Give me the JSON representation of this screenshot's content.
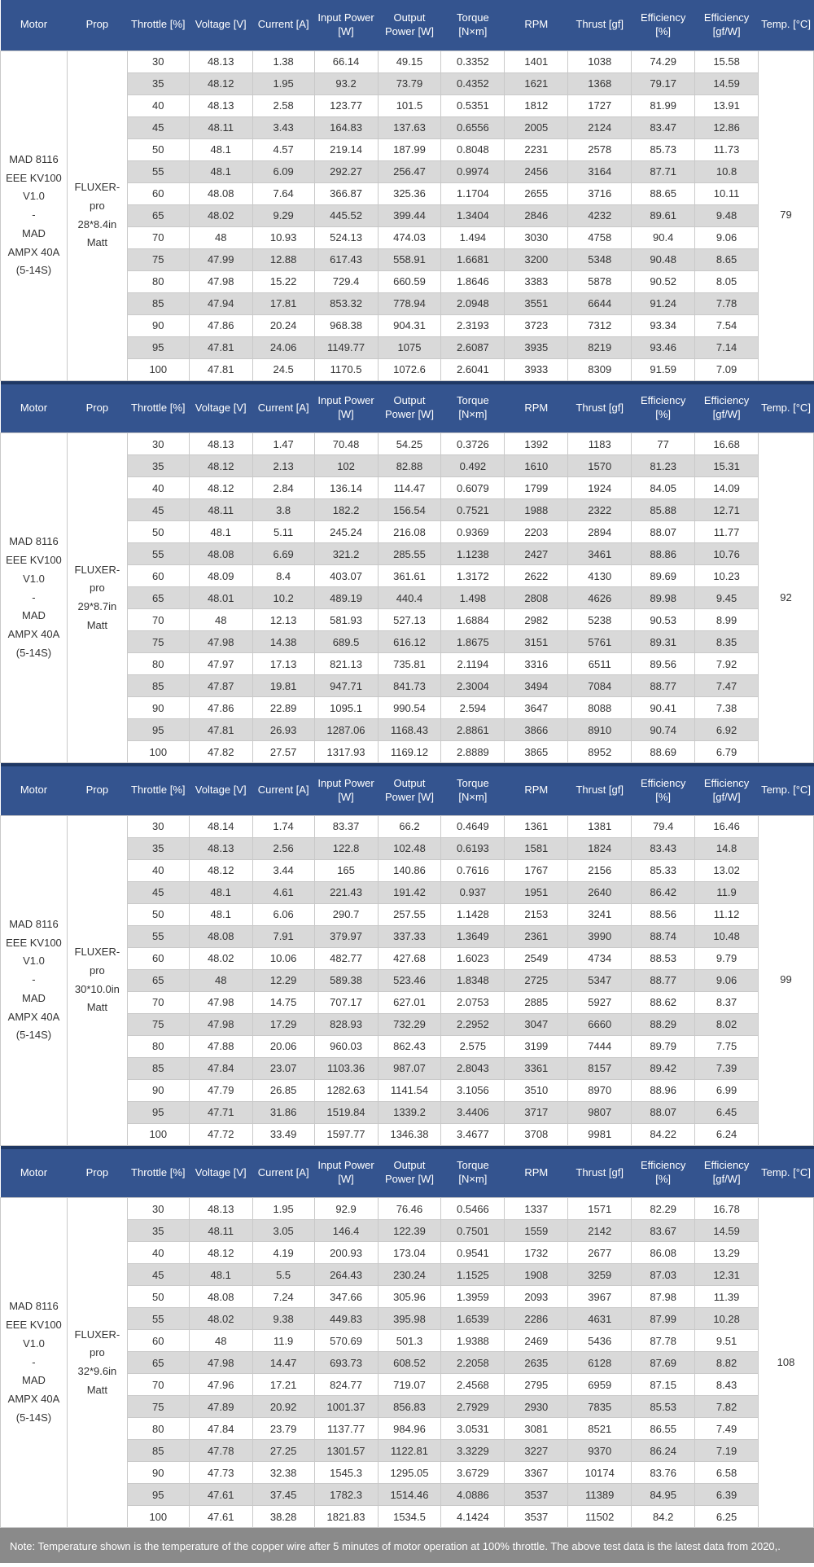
{
  "table": {
    "columns": [
      "Motor",
      "Prop",
      "Throttle [%]",
      "Voltage [V]",
      "Current [A]",
      "Input Power [W]",
      "Output Power [W]",
      "Torque [N×m]",
      "RPM",
      "Thrust [gf]",
      "Efficiency [%]",
      "Efficiency [gf/W]",
      "Temp. [°C]"
    ],
    "sections": [
      {
        "motor": "MAD 8116\nEEE KV100\nV1.0\n-\nMAD\nAMPX 40A\n(5-14S)",
        "prop": "FLUXER-\npro\n28*8.4in\nMatt",
        "temp": "79",
        "rows": [
          [
            "30",
            "48.13",
            "1.38",
            "66.14",
            "49.15",
            "0.3352",
            "1401",
            "1038",
            "74.29",
            "15.58"
          ],
          [
            "35",
            "48.12",
            "1.95",
            "93.2",
            "73.79",
            "0.4352",
            "1621",
            "1368",
            "79.17",
            "14.59"
          ],
          [
            "40",
            "48.13",
            "2.58",
            "123.77",
            "101.5",
            "0.5351",
            "1812",
            "1727",
            "81.99",
            "13.91"
          ],
          [
            "45",
            "48.11",
            "3.43",
            "164.83",
            "137.63",
            "0.6556",
            "2005",
            "2124",
            "83.47",
            "12.86"
          ],
          [
            "50",
            "48.1",
            "4.57",
            "219.14",
            "187.99",
            "0.8048",
            "2231",
            "2578",
            "85.73",
            "11.73"
          ],
          [
            "55",
            "48.1",
            "6.09",
            "292.27",
            "256.47",
            "0.9974",
            "2456",
            "3164",
            "87.71",
            "10.8"
          ],
          [
            "60",
            "48.08",
            "7.64",
            "366.87",
            "325.36",
            "1.1704",
            "2655",
            "3716",
            "88.65",
            "10.11"
          ],
          [
            "65",
            "48.02",
            "9.29",
            "445.52",
            "399.44",
            "1.3404",
            "2846",
            "4232",
            "89.61",
            "9.48"
          ],
          [
            "70",
            "48",
            "10.93",
            "524.13",
            "474.03",
            "1.494",
            "3030",
            "4758",
            "90.4",
            "9.06"
          ],
          [
            "75",
            "47.99",
            "12.88",
            "617.43",
            "558.91",
            "1.6681",
            "3200",
            "5348",
            "90.48",
            "8.65"
          ],
          [
            "80",
            "47.98",
            "15.22",
            "729.4",
            "660.59",
            "1.8646",
            "3383",
            "5878",
            "90.52",
            "8.05"
          ],
          [
            "85",
            "47.94",
            "17.81",
            "853.32",
            "778.94",
            "2.0948",
            "3551",
            "6644",
            "91.24",
            "7.78"
          ],
          [
            "90",
            "47.86",
            "20.24",
            "968.38",
            "904.31",
            "2.3193",
            "3723",
            "7312",
            "93.34",
            "7.54"
          ],
          [
            "95",
            "47.81",
            "24.06",
            "1149.77",
            "1075",
            "2.6087",
            "3935",
            "8219",
            "93.46",
            "7.14"
          ],
          [
            "100",
            "47.81",
            "24.5",
            "1170.5",
            "1072.6",
            "2.6041",
            "3933",
            "8309",
            "91.59",
            "7.09"
          ]
        ]
      },
      {
        "motor": "MAD 8116\nEEE KV100\nV1.0\n-\nMAD\nAMPX 40A\n(5-14S)",
        "prop": "FLUXER-\npro\n29*8.7in\nMatt",
        "temp": "92",
        "rows": [
          [
            "30",
            "48.13",
            "1.47",
            "70.48",
            "54.25",
            "0.3726",
            "1392",
            "1183",
            "77",
            "16.68"
          ],
          [
            "35",
            "48.12",
            "2.13",
            "102",
            "82.88",
            "0.492",
            "1610",
            "1570",
            "81.23",
            "15.31"
          ],
          [
            "40",
            "48.12",
            "2.84",
            "136.14",
            "114.47",
            "0.6079",
            "1799",
            "1924",
            "84.05",
            "14.09"
          ],
          [
            "45",
            "48.11",
            "3.8",
            "182.2",
            "156.54",
            "0.7521",
            "1988",
            "2322",
            "85.88",
            "12.71"
          ],
          [
            "50",
            "48.1",
            "5.11",
            "245.24",
            "216.08",
            "0.9369",
            "2203",
            "2894",
            "88.07",
            "11.77"
          ],
          [
            "55",
            "48.08",
            "6.69",
            "321.2",
            "285.55",
            "1.1238",
            "2427",
            "3461",
            "88.86",
            "10.76"
          ],
          [
            "60",
            "48.09",
            "8.4",
            "403.07",
            "361.61",
            "1.3172",
            "2622",
            "4130",
            "89.69",
            "10.23"
          ],
          [
            "65",
            "48.01",
            "10.2",
            "489.19",
            "440.4",
            "1.498",
            "2808",
            "4626",
            "89.98",
            "9.45"
          ],
          [
            "70",
            "48",
            "12.13",
            "581.93",
            "527.13",
            "1.6884",
            "2982",
            "5238",
            "90.53",
            "8.99"
          ],
          [
            "75",
            "47.98",
            "14.38",
            "689.5",
            "616.12",
            "1.8675",
            "3151",
            "5761",
            "89.31",
            "8.35"
          ],
          [
            "80",
            "47.97",
            "17.13",
            "821.13",
            "735.81",
            "2.1194",
            "3316",
            "6511",
            "89.56",
            "7.92"
          ],
          [
            "85",
            "47.87",
            "19.81",
            "947.71",
            "841.73",
            "2.3004",
            "3494",
            "7084",
            "88.77",
            "7.47"
          ],
          [
            "90",
            "47.86",
            "22.89",
            "1095.1",
            "990.54",
            "2.594",
            "3647",
            "8088",
            "90.41",
            "7.38"
          ],
          [
            "95",
            "47.81",
            "26.93",
            "1287.06",
            "1168.43",
            "2.8861",
            "3866",
            "8910",
            "90.74",
            "6.92"
          ],
          [
            "100",
            "47.82",
            "27.57",
            "1317.93",
            "1169.12",
            "2.8889",
            "3865",
            "8952",
            "88.69",
            "6.79"
          ]
        ]
      },
      {
        "motor": "MAD 8116\nEEE KV100\nV1.0\n-\nMAD\nAMPX 40A\n(5-14S)",
        "prop": "FLUXER-\npro\n30*10.0in\nMatt",
        "temp": "99",
        "rows": [
          [
            "30",
            "48.14",
            "1.74",
            "83.37",
            "66.2",
            "0.4649",
            "1361",
            "1381",
            "79.4",
            "16.46"
          ],
          [
            "35",
            "48.13",
            "2.56",
            "122.8",
            "102.48",
            "0.6193",
            "1581",
            "1824",
            "83.43",
            "14.8"
          ],
          [
            "40",
            "48.12",
            "3.44",
            "165",
            "140.86",
            "0.7616",
            "1767",
            "2156",
            "85.33",
            "13.02"
          ],
          [
            "45",
            "48.1",
            "4.61",
            "221.43",
            "191.42",
            "0.937",
            "1951",
            "2640",
            "86.42",
            "11.9"
          ],
          [
            "50",
            "48.1",
            "6.06",
            "290.7",
            "257.55",
            "1.1428",
            "2153",
            "3241",
            "88.56",
            "11.12"
          ],
          [
            "55",
            "48.08",
            "7.91",
            "379.97",
            "337.33",
            "1.3649",
            "2361",
            "3990",
            "88.74",
            "10.48"
          ],
          [
            "60",
            "48.02",
            "10.06",
            "482.77",
            "427.68",
            "1.6023",
            "2549",
            "4734",
            "88.53",
            "9.79"
          ],
          [
            "65",
            "48",
            "12.29",
            "589.38",
            "523.46",
            "1.8348",
            "2725",
            "5347",
            "88.77",
            "9.06"
          ],
          [
            "70",
            "47.98",
            "14.75",
            "707.17",
            "627.01",
            "2.0753",
            "2885",
            "5927",
            "88.62",
            "8.37"
          ],
          [
            "75",
            "47.98",
            "17.29",
            "828.93",
            "732.29",
            "2.2952",
            "3047",
            "6660",
            "88.29",
            "8.02"
          ],
          [
            "80",
            "47.88",
            "20.06",
            "960.03",
            "862.43",
            "2.575",
            "3199",
            "7444",
            "89.79",
            "7.75"
          ],
          [
            "85",
            "47.84",
            "23.07",
            "1103.36",
            "987.07",
            "2.8043",
            "3361",
            "8157",
            "89.42",
            "7.39"
          ],
          [
            "90",
            "47.79",
            "26.85",
            "1282.63",
            "1141.54",
            "3.1056",
            "3510",
            "8970",
            "88.96",
            "6.99"
          ],
          [
            "95",
            "47.71",
            "31.86",
            "1519.84",
            "1339.2",
            "3.4406",
            "3717",
            "9807",
            "88.07",
            "6.45"
          ],
          [
            "100",
            "47.72",
            "33.49",
            "1597.77",
            "1346.38",
            "3.4677",
            "3708",
            "9981",
            "84.22",
            "6.24"
          ]
        ]
      },
      {
        "motor": "MAD 8116\nEEE KV100\nV1.0\n-\nMAD\nAMPX 40A\n(5-14S)",
        "prop": "FLUXER-\npro\n32*9.6in\nMatt",
        "temp": "108",
        "rows": [
          [
            "30",
            "48.13",
            "1.95",
            "92.9",
            "76.46",
            "0.5466",
            "1337",
            "1571",
            "82.29",
            "16.78"
          ],
          [
            "35",
            "48.11",
            "3.05",
            "146.4",
            "122.39",
            "0.7501",
            "1559",
            "2142",
            "83.67",
            "14.59"
          ],
          [
            "40",
            "48.12",
            "4.19",
            "200.93",
            "173.04",
            "0.9541",
            "1732",
            "2677",
            "86.08",
            "13.29"
          ],
          [
            "45",
            "48.1",
            "5.5",
            "264.43",
            "230.24",
            "1.1525",
            "1908",
            "3259",
            "87.03",
            "12.31"
          ],
          [
            "50",
            "48.08",
            "7.24",
            "347.66",
            "305.96",
            "1.3959",
            "2093",
            "3967",
            "87.98",
            "11.39"
          ],
          [
            "55",
            "48.02",
            "9.38",
            "449.83",
            "395.98",
            "1.6539",
            "2286",
            "4631",
            "87.99",
            "10.28"
          ],
          [
            "60",
            "48",
            "11.9",
            "570.69",
            "501.3",
            "1.9388",
            "2469",
            "5436",
            "87.78",
            "9.51"
          ],
          [
            "65",
            "47.98",
            "14.47",
            "693.73",
            "608.52",
            "2.2058",
            "2635",
            "6128",
            "87.69",
            "8.82"
          ],
          [
            "70",
            "47.96",
            "17.21",
            "824.77",
            "719.07",
            "2.4568",
            "2795",
            "6959",
            "87.15",
            "8.43"
          ],
          [
            "75",
            "47.89",
            "20.92",
            "1001.37",
            "856.83",
            "2.7929",
            "2930",
            "7835",
            "85.53",
            "7.82"
          ],
          [
            "80",
            "47.84",
            "23.79",
            "1137.77",
            "984.96",
            "3.0531",
            "3081",
            "8521",
            "86.55",
            "7.49"
          ],
          [
            "85",
            "47.78",
            "27.25",
            "1301.57",
            "1122.81",
            "3.3229",
            "3227",
            "9370",
            "86.24",
            "7.19"
          ],
          [
            "90",
            "47.73",
            "32.38",
            "1545.3",
            "1295.05",
            "3.6729",
            "3367",
            "10174",
            "83.76",
            "6.58"
          ],
          [
            "95",
            "47.61",
            "37.45",
            "1782.3",
            "1514.46",
            "4.0886",
            "3537",
            "11389",
            "84.95",
            "6.39"
          ],
          [
            "100",
            "47.61",
            "38.28",
            "1821.83",
            "1534.5",
            "4.1424",
            "3537",
            "11502",
            "84.2",
            "6.25"
          ]
        ]
      }
    ]
  },
  "note": "Note: Temperature shown is the temperature of the copper wire after 5 minutes of motor operation at 100% throttle. The above test data is the latest data from 2020,.",
  "colors": {
    "header_bg": "#34548F",
    "section_separator": "#1F3864",
    "row_alt_bg": "#D9D9D9",
    "cell_border": "#C9C9C9",
    "note_bg": "#8A8A8A",
    "note_text": "#FFFFFF",
    "body_text": "#333333"
  }
}
